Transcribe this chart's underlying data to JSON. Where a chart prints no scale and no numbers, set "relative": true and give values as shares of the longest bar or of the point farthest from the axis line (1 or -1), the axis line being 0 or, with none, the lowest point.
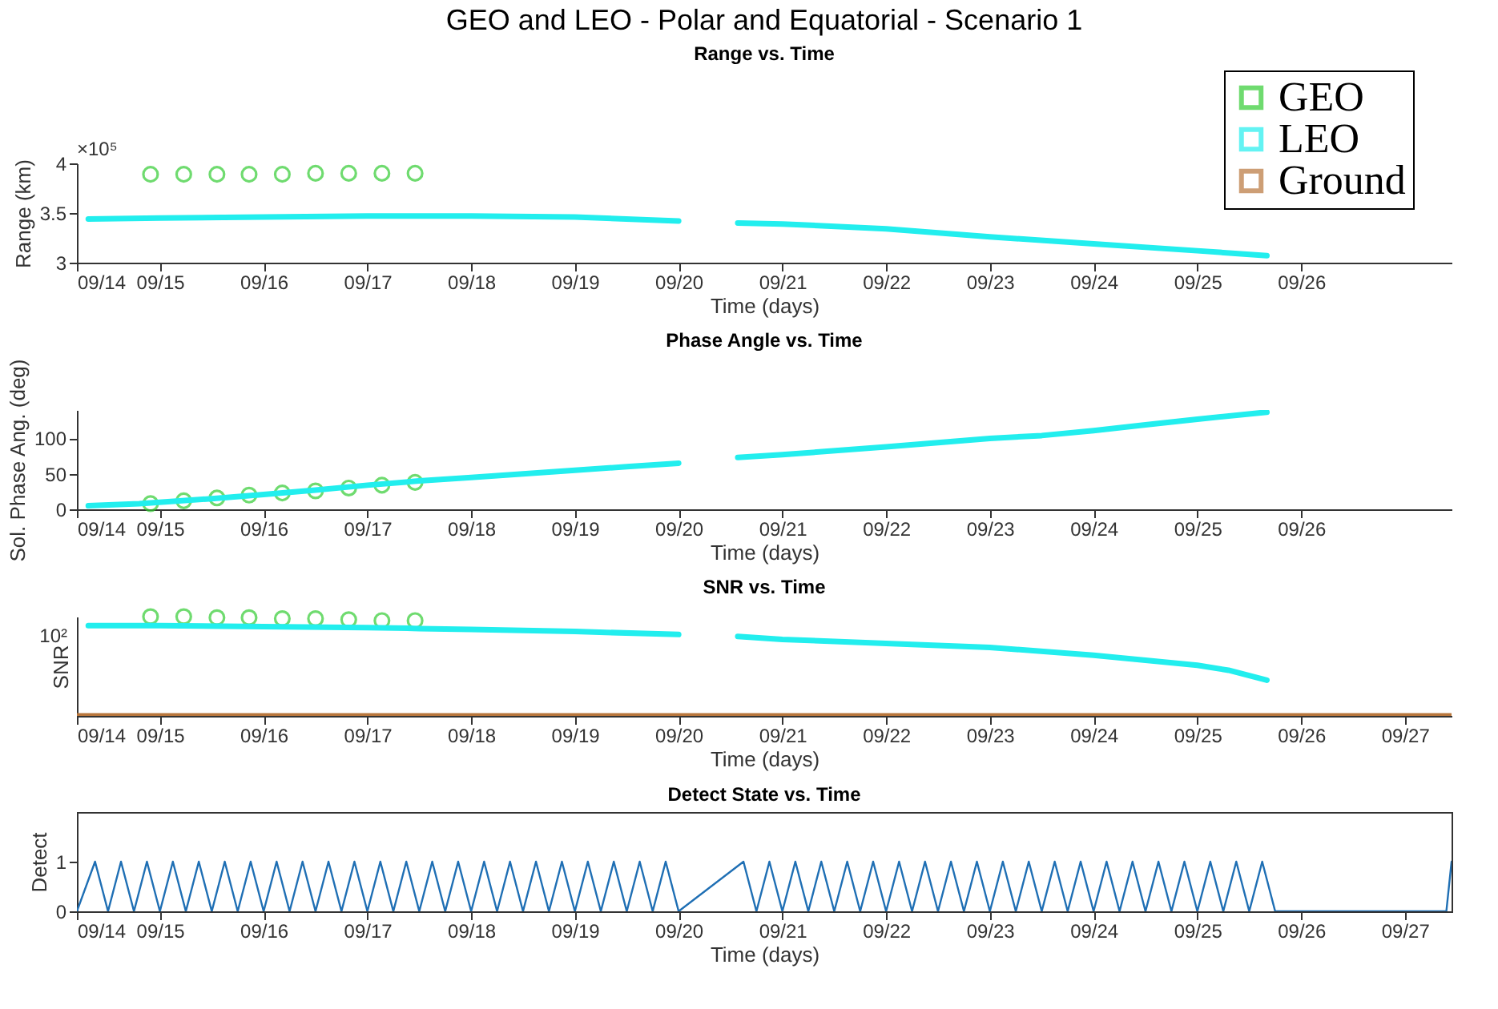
{
  "chart_data": [
    {
      "type": "line",
      "title": "GEO and LEO - Polar and Equatorial - Scenario 1",
      "subtitle": "Range vs. Time",
      "xlabel": "Time (days)",
      "ylabel": "Range (km)",
      "annotations": [
        "×10⁵"
      ],
      "legend": "top right",
      "grid": false,
      "xlim": [
        "--09-14T04:48",
        "--09-27T10:48"
      ],
      "xticks": [
        {
          "value": "--09-14T04:48",
          "label": "09/14"
        },
        {
          "value": "--09-15",
          "label": "09/15"
        },
        {
          "value": "--09-16",
          "label": "09/16"
        },
        {
          "value": "--09-17",
          "label": "09/17"
        },
        {
          "value": "--09-18",
          "label": "09/18"
        },
        {
          "value": "--09-19",
          "label": "09/19"
        },
        {
          "value": "--09-20",
          "label": "09/20"
        },
        {
          "value": "--09-21",
          "label": "09/21"
        },
        {
          "value": "--09-22",
          "label": "09/22"
        },
        {
          "value": "--09-23",
          "label": "09/23"
        },
        {
          "value": "--09-24",
          "label": "09/24"
        },
        {
          "value": "--09-25",
          "label": "09/25"
        },
        {
          "value": "--09-26",
          "label": "09/26"
        }
      ],
      "ylim": [
        3,
        4
      ],
      "yticks": [
        3,
        3.5,
        4
      ],
      "series": [
        {
          "name": "GEO",
          "type": "scatter",
          "marker": "circle",
          "color": "#33cc33",
          "x": [
            "--09-14T21:50",
            "--09-15T05:31",
            "--09-15T13:12",
            "--09-15T20:38",
            "--09-16T04:19",
            "--09-16T12:00",
            "--09-16T19:41",
            "--09-17T03:22",
            "--09-17T11:02"
          ],
          "values": [
            3.89,
            3.89,
            3.89,
            3.89,
            3.89,
            3.9,
            3.9,
            3.9,
            3.9
          ]
        },
        {
          "name": "LEO",
          "color": "#22eeee",
          "x": [
            "--09-14T07:26",
            "--09-15",
            "--09-16",
            "--09-17",
            "--09-18",
            "--09-19",
            "--09-20",
            "--09-20T07:12",
            "--09-20T13:41",
            "--09-21",
            "--09-22",
            "--09-23",
            "--09-24",
            "--09-25",
            "--09-25T16:05"
          ],
          "values": [
            3.44,
            3.45,
            3.46,
            3.47,
            3.47,
            3.46,
            3.42,
            null,
            3.4,
            3.39,
            3.34,
            3.26,
            3.19,
            3.12,
            3.07
          ]
        }
      ]
    },
    {
      "type": "line",
      "title": "Phase Angle vs. Time",
      "xlabel": "Time (days)",
      "ylabel": "Sol. Phase Ang. (deg)",
      "grid": false,
      "xlim": [
        "--09-14T04:48",
        "--09-27T10:48"
      ],
      "xticks": [
        {
          "value": "--09-14T04:48",
          "label": "09/14"
        },
        {
          "value": "--09-15",
          "label": "09/15"
        },
        {
          "value": "--09-16",
          "label": "09/16"
        },
        {
          "value": "--09-17",
          "label": "09/17"
        },
        {
          "value": "--09-18",
          "label": "09/18"
        },
        {
          "value": "--09-19",
          "label": "09/19"
        },
        {
          "value": "--09-20",
          "label": "09/20"
        },
        {
          "value": "--09-21",
          "label": "09/21"
        },
        {
          "value": "--09-22",
          "label": "09/22"
        },
        {
          "value": "--09-23",
          "label": "09/23"
        },
        {
          "value": "--09-24",
          "label": "09/24"
        },
        {
          "value": "--09-25",
          "label": "09/25"
        },
        {
          "value": "--09-26",
          "label": "09/26"
        }
      ],
      "ylim": [
        0,
        140
      ],
      "yticks": [
        0,
        50,
        100
      ],
      "series": [
        {
          "type": "scatter",
          "marker": "circle",
          "color": "#33cc33",
          "x": [
            "--09-14T21:50",
            "--09-15T05:31",
            "--09-15T13:12",
            "--09-15T20:38",
            "--09-16T04:19",
            "--09-16T12:00",
            "--09-16T19:41",
            "--09-17T03:22",
            "--09-17T11:02"
          ],
          "values": [
            8,
            12,
            16,
            20,
            23,
            26,
            30,
            34,
            38
          ]
        },
        {
          "color": "#22eeee",
          "x": [
            "--09-14T07:26",
            "--09-14T19:12",
            "--09-15T12:00",
            "--09-16",
            "--09-16T12:00",
            "--09-17",
            "--09-17T12:00",
            "--09-18",
            "--09-18T12:00",
            "--09-19",
            "--09-19T12:00",
            "--09-20",
            "--09-20T07:12",
            "--09-20T13:41",
            "--09-21",
            "--09-22",
            "--09-23",
            "--09-23T12:00",
            "--09-24",
            "--09-24T12:00",
            "--09-25",
            "--09-25T16:05"
          ],
          "values": [
            5,
            8,
            15,
            21,
            27,
            34,
            40,
            45,
            50,
            55,
            60,
            65,
            null,
            73,
            77,
            88,
            100,
            104,
            111,
            119,
            127,
            137
          ]
        }
      ]
    },
    {
      "type": "line",
      "title": "SNR vs. Time",
      "xlabel": "Time (days)",
      "ylabel": "SNR",
      "relative": true,
      "annotations": [
        "10²"
      ],
      "grid": false,
      "xlim": [
        "--09-14T04:48",
        "--09-27T10:48"
      ],
      "xticks": [
        {
          "value": "--09-14T04:48",
          "label": "09/14"
        },
        {
          "value": "--09-15",
          "label": "09/15"
        },
        {
          "value": "--09-16",
          "label": "09/16"
        },
        {
          "value": "--09-17",
          "label": "09/17"
        },
        {
          "value": "--09-18",
          "label": "09/18"
        },
        {
          "value": "--09-19",
          "label": "09/19"
        },
        {
          "value": "--09-20",
          "label": "09/20"
        },
        {
          "value": "--09-21",
          "label": "09/21"
        },
        {
          "value": "--09-22",
          "label": "09/22"
        },
        {
          "value": "--09-23",
          "label": "09/23"
        },
        {
          "value": "--09-24",
          "label": "09/24"
        },
        {
          "value": "--09-25",
          "label": "09/25"
        },
        {
          "value": "--09-26",
          "label": "09/26"
        },
        {
          "value": "--09-27",
          "label": "09/27"
        }
      ],
      "series": [
        {
          "type": "scatter",
          "marker": "circle",
          "color": "#33cc33",
          "x": [
            "--09-14T21:50",
            "--09-15T05:31",
            "--09-15T13:12",
            "--09-15T20:38",
            "--09-16T04:19",
            "--09-16T12:00",
            "--09-16T19:41",
            "--09-17T03:22",
            "--09-17T11:02"
          ],
          "values": [
            1,
            1,
            0.99,
            0.99,
            0.98,
            0.98,
            0.97,
            0.96,
            0.96
          ]
        },
        {
          "color": "#22eeee",
          "x": [
            "--09-14T07:26",
            "--09-15",
            "--09-16",
            "--09-17",
            "--09-17T12:00",
            "--09-18",
            "--09-19",
            "--09-20",
            "--09-20T07:12",
            "--09-20T13:41",
            "--09-21",
            "--09-22",
            "--09-23",
            "--09-24",
            "--09-25",
            "--09-25T07:12",
            "--09-25T16:05"
          ],
          "values": [
            0.91,
            0.91,
            0.9,
            0.89,
            0.88,
            0.87,
            0.85,
            0.82,
            null,
            0.8,
            0.77,
            0.73,
            0.69,
            0.61,
            0.51,
            0.46,
            0.36
          ]
        },
        {
          "name": "Ground",
          "color": "#b8763c",
          "x": [
            "--09-14T04:48",
            "--09-27T10:48"
          ],
          "values": [
            0,
            0
          ]
        }
      ]
    },
    {
      "type": "line",
      "title": "Detect State vs. Time",
      "xlabel": "Time (days)",
      "ylabel": "Detect",
      "grid": false,
      "xlim": [
        "--09-14T04:48",
        "--09-27T10:48"
      ],
      "xticks": [
        {
          "value": "--09-14T04:48",
          "label": "09/14"
        },
        {
          "value": "--09-15",
          "label": "09/15"
        },
        {
          "value": "--09-16",
          "label": "09/16"
        },
        {
          "value": "--09-17",
          "label": "09/17"
        },
        {
          "value": "--09-18",
          "label": "09/18"
        },
        {
          "value": "--09-19",
          "label": "09/19"
        },
        {
          "value": "--09-20",
          "label": "09/20"
        },
        {
          "value": "--09-21",
          "label": "09/21"
        },
        {
          "value": "--09-22",
          "label": "09/22"
        },
        {
          "value": "--09-23",
          "label": "09/23"
        },
        {
          "value": "--09-24",
          "label": "09/24"
        },
        {
          "value": "--09-25",
          "label": "09/25"
        },
        {
          "value": "--09-26",
          "label": "09/26"
        },
        {
          "value": "--09-27",
          "label": "09/27"
        }
      ],
      "ylim": [
        0,
        2
      ],
      "yticks": [
        0,
        1
      ],
      "series": [
        {
          "color": "#1f6fb4",
          "x": [
            "--09-14T04:48",
            "--09-14T09:00",
            "--09-14T12:00",
            "--09-14T15:00",
            "--09-14T18:00",
            "--09-14T21:00",
            "--09-15T00:00",
            "--09-15T03:00",
            "--09-15T06:00",
            "--09-15T09:00",
            "--09-15T12:00",
            "--09-15T15:00",
            "--09-15T18:00",
            "--09-15T21:00",
            "--09-16T00:00",
            "--09-16T03:00",
            "--09-16T06:00",
            "--09-16T09:00",
            "--09-16T12:00",
            "--09-16T15:00",
            "--09-16T18:00",
            "--09-16T21:00",
            "--09-17T00:00",
            "--09-17T03:00",
            "--09-17T06:00",
            "--09-17T09:00",
            "--09-17T12:00",
            "--09-17T15:00",
            "--09-17T18:00",
            "--09-17T21:00",
            "--09-18T00:00",
            "--09-18T03:00",
            "--09-18T06:00",
            "--09-18T09:00",
            "--09-18T12:00",
            "--09-18T15:00",
            "--09-18T18:00",
            "--09-18T21:00",
            "--09-19T00:00",
            "--09-19T03:00",
            "--09-19T06:00",
            "--09-19T09:00",
            "--09-19T12:00",
            "--09-19T15:00",
            "--09-19T18:00",
            "--09-19T21:00",
            "--09-20T00:00",
            "--09-20T15:00",
            "--09-20T18:00",
            "--09-20T21:00",
            "--09-21T00:00",
            "--09-21T03:00",
            "--09-21T06:00",
            "--09-21T09:00",
            "--09-21T12:00",
            "--09-21T15:00",
            "--09-21T18:00",
            "--09-21T21:00",
            "--09-22T00:00",
            "--09-22T03:00",
            "--09-22T06:00",
            "--09-22T09:00",
            "--09-22T12:00",
            "--09-22T15:00",
            "--09-22T18:00",
            "--09-22T21:00",
            "--09-23T00:00",
            "--09-23T03:00",
            "--09-23T06:00",
            "--09-23T09:00",
            "--09-23T12:00",
            "--09-23T15:00",
            "--09-23T18:00",
            "--09-23T21:00",
            "--09-24T00:00",
            "--09-24T03:00",
            "--09-24T06:00",
            "--09-24T09:00",
            "--09-24T12:00",
            "--09-24T15:00",
            "--09-24T18:00",
            "--09-24T21:00",
            "--09-25T00:00",
            "--09-25T03:00",
            "--09-25T06:00",
            "--09-25T09:00",
            "--09-25T12:00",
            "--09-25T15:00",
            "--09-25T18:00",
            "--09-27T09:36",
            "--09-27T10:48"
          ],
          "values": [
            0,
            1,
            0,
            1,
            0,
            1,
            0,
            1,
            0,
            1,
            0,
            1,
            0,
            1,
            0,
            1,
            0,
            1,
            0,
            1,
            0,
            1,
            0,
            1,
            0,
            1,
            0,
            1,
            0,
            1,
            0,
            1,
            0,
            1,
            0,
            1,
            0,
            1,
            0,
            1,
            0,
            1,
            0,
            1,
            0,
            1,
            0,
            1,
            0,
            1,
            0,
            1,
            0,
            1,
            0,
            1,
            0,
            1,
            0,
            1,
            0,
            1,
            0,
            1,
            0,
            1,
            0,
            1,
            0,
            1,
            0,
            1,
            0,
            1,
            0,
            1,
            0,
            1,
            0,
            1,
            0,
            1,
            0,
            1,
            0,
            1,
            0,
            1,
            0,
            0,
            1
          ]
        }
      ]
    }
  ]
}
